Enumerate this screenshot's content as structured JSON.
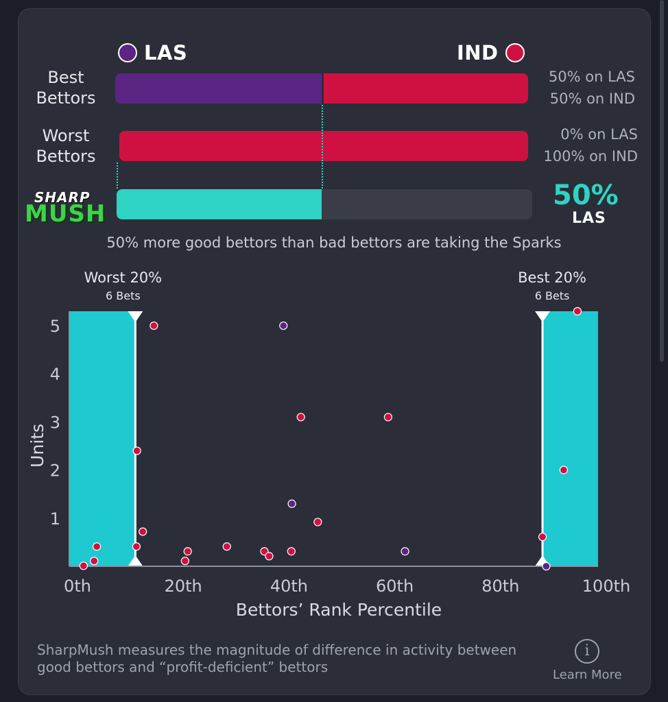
{
  "teams": {
    "left": {
      "code": "LAS",
      "color": "#5a2583"
    },
    "right": {
      "code": "IND",
      "color": "#cf1141"
    }
  },
  "rows": {
    "best": {
      "label_line1": "Best",
      "label_line2": "Bettors",
      "las_share": 50,
      "ind_share": 50,
      "text_las": "50% on LAS",
      "text_ind": "50% on IND"
    },
    "worst": {
      "label_line1": "Worst",
      "label_line2": "Bettors",
      "las_share": 0,
      "ind_share": 100,
      "text_las": "0% on LAS",
      "text_ind": "100% on IND"
    }
  },
  "sharpmush": {
    "logo_line1": "SHARP",
    "logo_line2": "MUSH",
    "value": 50,
    "value_text": "50%",
    "team": "LAS",
    "accent": "#2fd3c4"
  },
  "summary": "50% more good bettors than bad bettors are taking the Sparks",
  "chart_data": {
    "type": "scatter",
    "xlabel": "Bettors’ Rank Percentile",
    "ylabel": "Units",
    "xlim": [
      0,
      100
    ],
    "ylim": [
      0,
      5.3
    ],
    "x_ticks": [
      0,
      20,
      40,
      60,
      80,
      100
    ],
    "x_tick_labels": [
      "0th",
      "20th",
      "40th",
      "60th",
      "80th",
      "100th"
    ],
    "y_ticks": [
      1,
      2,
      3,
      4,
      5
    ],
    "y_tick_labels": [
      "1",
      "2",
      "3",
      "4",
      "5"
    ],
    "zones": [
      {
        "name": "Worst 20%",
        "sub": "6 Bets",
        "from": 0,
        "to": 12.5,
        "color": "#1ec9cf"
      },
      {
        "name": "Best 20%",
        "sub": "6 Bets",
        "from": 89.5,
        "to": 100,
        "color": "#1ec9cf"
      }
    ],
    "series": [
      {
        "team": "IND",
        "color": "#cf1141",
        "points": [
          [
            2.7,
            0.01
          ],
          [
            4.7,
            0.11
          ],
          [
            5.2,
            0.41
          ],
          [
            12.7,
            0.41
          ],
          [
            12.8,
            2.4
          ],
          [
            13.9,
            0.72
          ],
          [
            16.0,
            5.0
          ],
          [
            21.9,
            0.11
          ],
          [
            22.4,
            0.31
          ],
          [
            29.8,
            0.41
          ],
          [
            36.9,
            0.31
          ],
          [
            37.8,
            0.21
          ],
          [
            42.0,
            0.31
          ],
          [
            43.8,
            3.1
          ],
          [
            47.0,
            0.92
          ],
          [
            60.3,
            3.1
          ],
          [
            89.5,
            0.61
          ],
          [
            93.5,
            2.0
          ],
          [
            96.1,
            5.3
          ]
        ]
      },
      {
        "team": "LAS",
        "color": "#5a2583",
        "points": [
          [
            40.5,
            5.0
          ],
          [
            42.1,
            1.3
          ],
          [
            63.5,
            0.31
          ],
          [
            90.2,
            0.0
          ]
        ]
      }
    ]
  },
  "footer": {
    "note": "SharpMush measures the magnitude of difference in activity between good bettors and “profit-deficient” bettors",
    "learn_more": "Learn More",
    "info_glyph": "i"
  }
}
